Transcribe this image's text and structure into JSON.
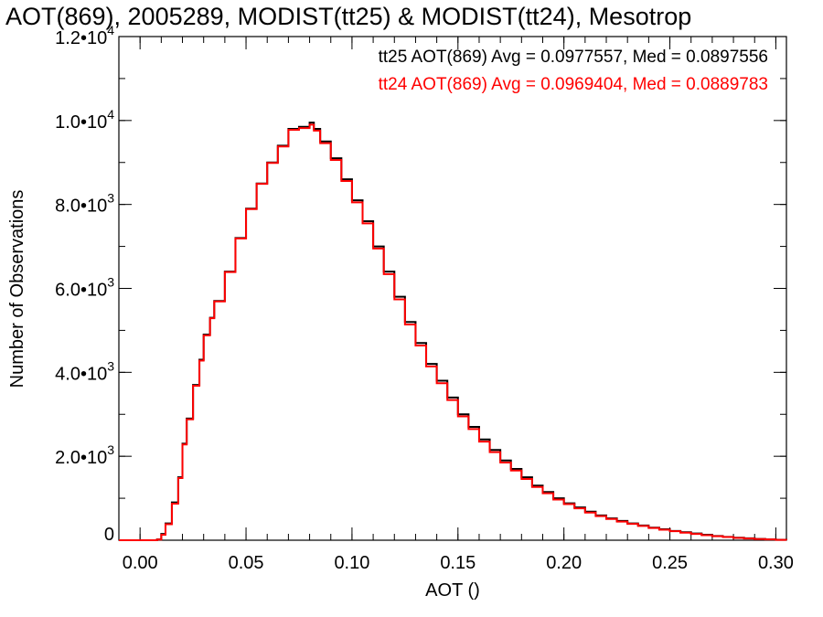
{
  "chart_data": {
    "type": "line",
    "title": "AOT(869), 2005289, MODIST(tt25) & MODIST(tt24), Mesotrop",
    "xlabel": "AOT ()",
    "ylabel": "Number of Observations",
    "xlim": [
      -0.01,
      0.305
    ],
    "ylim": [
      0,
      12000
    ],
    "grid": false,
    "legend_position": "top-right",
    "x_ticks": [
      {
        "value": 0.0,
        "label": "0.00"
      },
      {
        "value": 0.05,
        "label": "0.05"
      },
      {
        "value": 0.1,
        "label": "0.10"
      },
      {
        "value": 0.15,
        "label": "0.15"
      },
      {
        "value": 0.2,
        "label": "0.20"
      },
      {
        "value": 0.25,
        "label": "0.25"
      },
      {
        "value": 0.3,
        "label": "0.30"
      }
    ],
    "y_ticks": [
      {
        "value": 0,
        "mantissa": "0",
        "exponent": ""
      },
      {
        "value": 2000,
        "mantissa": "2.0•10",
        "exponent": "3"
      },
      {
        "value": 4000,
        "mantissa": "4.0•10",
        "exponent": "3"
      },
      {
        "value": 6000,
        "mantissa": "6.0•10",
        "exponent": "3"
      },
      {
        "value": 8000,
        "mantissa": "8.0•10",
        "exponent": "3"
      },
      {
        "value": 10000,
        "mantissa": "1.0•10",
        "exponent": "4"
      },
      {
        "value": 12000,
        "mantissa": "1.2•10",
        "exponent": "4"
      }
    ],
    "x_minor_step": 0.01,
    "y_minor_step": 1000,
    "series": [
      {
        "name": "tt25",
        "legend": "tt25 AOT(869) Avg = 0.0977557, Med = 0.0897556",
        "color": "#000000",
        "x": [
          -0.01,
          0.0,
          0.005,
          0.008,
          0.01,
          0.012,
          0.015,
          0.018,
          0.02,
          0.022,
          0.025,
          0.028,
          0.03,
          0.033,
          0.035,
          0.04,
          0.045,
          0.05,
          0.055,
          0.06,
          0.065,
          0.07,
          0.075,
          0.08,
          0.082,
          0.085,
          0.09,
          0.095,
          0.1,
          0.105,
          0.11,
          0.115,
          0.12,
          0.125,
          0.13,
          0.135,
          0.14,
          0.145,
          0.15,
          0.155,
          0.16,
          0.165,
          0.17,
          0.175,
          0.18,
          0.185,
          0.19,
          0.195,
          0.2,
          0.205,
          0.21,
          0.215,
          0.22,
          0.225,
          0.23,
          0.235,
          0.24,
          0.245,
          0.25,
          0.255,
          0.26,
          0.265,
          0.27,
          0.275,
          0.28,
          0.285,
          0.29,
          0.295,
          0.3,
          0.305
        ],
        "y": [
          0,
          0,
          0,
          20,
          150,
          400,
          900,
          1500,
          2300,
          2900,
          3700,
          4300,
          4900,
          5300,
          5700,
          6400,
          7200,
          7900,
          8500,
          9000,
          9400,
          9800,
          9850,
          9950,
          9800,
          9500,
          9100,
          8600,
          8100,
          7600,
          7000,
          6400,
          5800,
          5200,
          4700,
          4200,
          3800,
          3400,
          3000,
          2700,
          2400,
          2150,
          1900,
          1700,
          1500,
          1300,
          1150,
          1000,
          880,
          780,
          680,
          590,
          520,
          460,
          400,
          350,
          300,
          260,
          220,
          190,
          160,
          130,
          100,
          80,
          60,
          45,
          30,
          20,
          10,
          5
        ]
      },
      {
        "name": "tt24",
        "legend": "tt24 AOT(869) Avg = 0.0969404, Med = 0.0889783",
        "color": "#ff0000",
        "x": [
          -0.01,
          0.0,
          0.005,
          0.008,
          0.01,
          0.012,
          0.015,
          0.018,
          0.02,
          0.022,
          0.025,
          0.028,
          0.03,
          0.033,
          0.035,
          0.04,
          0.045,
          0.05,
          0.055,
          0.06,
          0.065,
          0.07,
          0.075,
          0.08,
          0.082,
          0.085,
          0.09,
          0.095,
          0.1,
          0.105,
          0.11,
          0.115,
          0.12,
          0.125,
          0.13,
          0.135,
          0.14,
          0.145,
          0.15,
          0.155,
          0.16,
          0.165,
          0.17,
          0.175,
          0.18,
          0.185,
          0.19,
          0.195,
          0.2,
          0.205,
          0.21,
          0.215,
          0.22,
          0.225,
          0.23,
          0.235,
          0.24,
          0.245,
          0.25,
          0.255,
          0.26,
          0.265,
          0.27,
          0.275,
          0.28,
          0.285,
          0.29,
          0.295,
          0.3,
          0.305
        ],
        "y": [
          0,
          0,
          0,
          15,
          130,
          380,
          870,
          1480,
          2280,
          2880,
          3680,
          4280,
          4880,
          5290,
          5690,
          6390,
          7190,
          7890,
          8490,
          8990,
          9380,
          9780,
          9820,
          9900,
          9760,
          9460,
          9060,
          8560,
          8050,
          7550,
          6950,
          6340,
          5740,
          5140,
          4640,
          4140,
          3740,
          3340,
          2950,
          2650,
          2350,
          2100,
          1850,
          1660,
          1460,
          1270,
          1120,
          970,
          860,
          760,
          660,
          575,
          505,
          445,
          390,
          340,
          290,
          250,
          215,
          180,
          150,
          120,
          95,
          75,
          55,
          40,
          28,
          18,
          9,
          4
        ]
      }
    ]
  }
}
